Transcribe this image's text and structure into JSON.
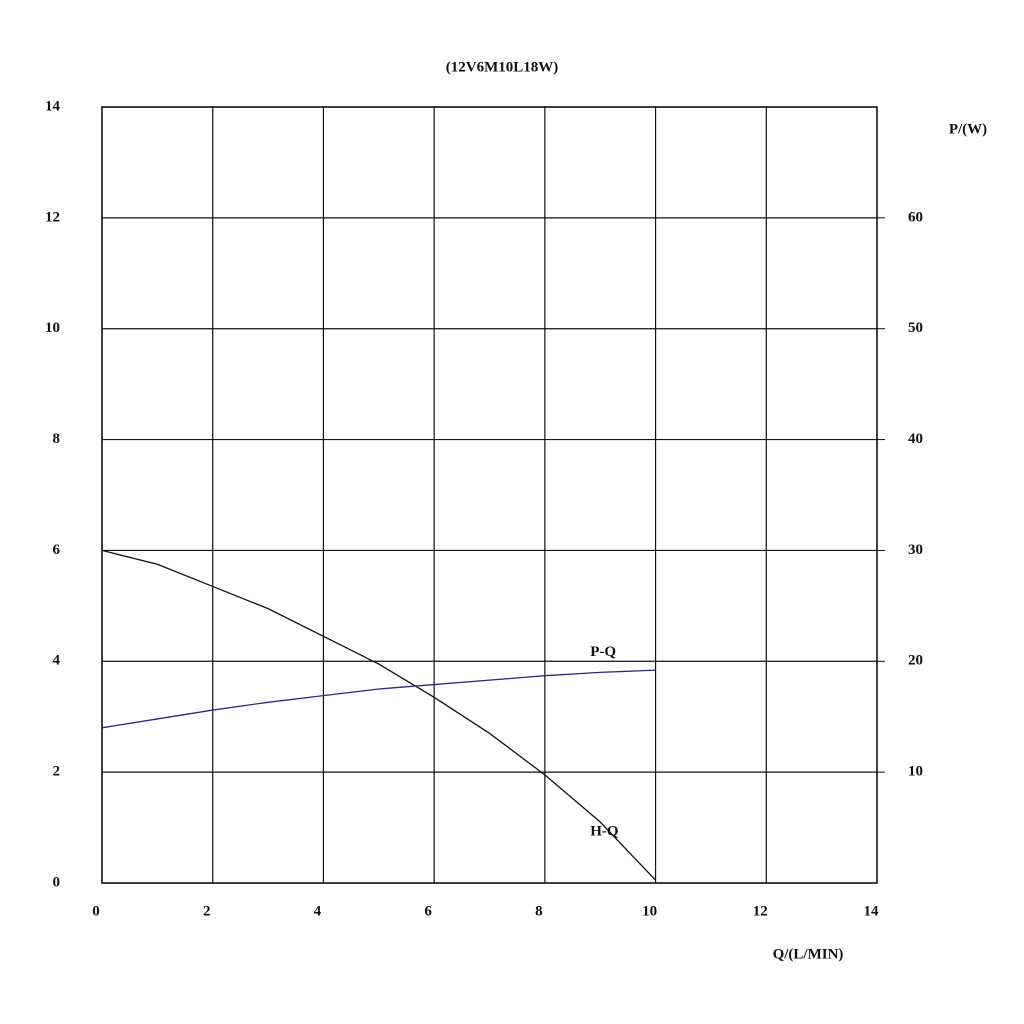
{
  "chart_data": {
    "type": "line",
    "title": "(12V6M10L18W)",
    "x_label": "Q/(L/MIN)",
    "y2_label": "P/(W)",
    "x": [
      0,
      1,
      2,
      3,
      4,
      5,
      6,
      7,
      8,
      9,
      10
    ],
    "series": [
      {
        "name": "H-Q",
        "color": "#111111",
        "values": [
          6,
          5.75,
          5.35,
          4.95,
          4.45,
          3.95,
          3.35,
          2.7,
          1.95,
          1.1,
          0.05
        ]
      },
      {
        "name": "P-Q",
        "color": "#2a2a80",
        "axis": "y2",
        "values": [
          14,
          14.8,
          15.6,
          16.3,
          16.9,
          17.5,
          17.9,
          18.3,
          18.7,
          19.0,
          19.2
        ]
      }
    ],
    "xlim": [
      0,
      14
    ],
    "xticks": [
      0,
      2,
      4,
      6,
      8,
      10,
      12,
      14
    ],
    "ylim": [
      0,
      14
    ],
    "yticks": [
      0,
      2,
      4,
      6,
      8,
      10,
      12,
      14
    ],
    "y2lim": [
      0,
      70
    ],
    "y2ticks": [
      10,
      20,
      30,
      40,
      50,
      60
    ],
    "grid": true
  }
}
